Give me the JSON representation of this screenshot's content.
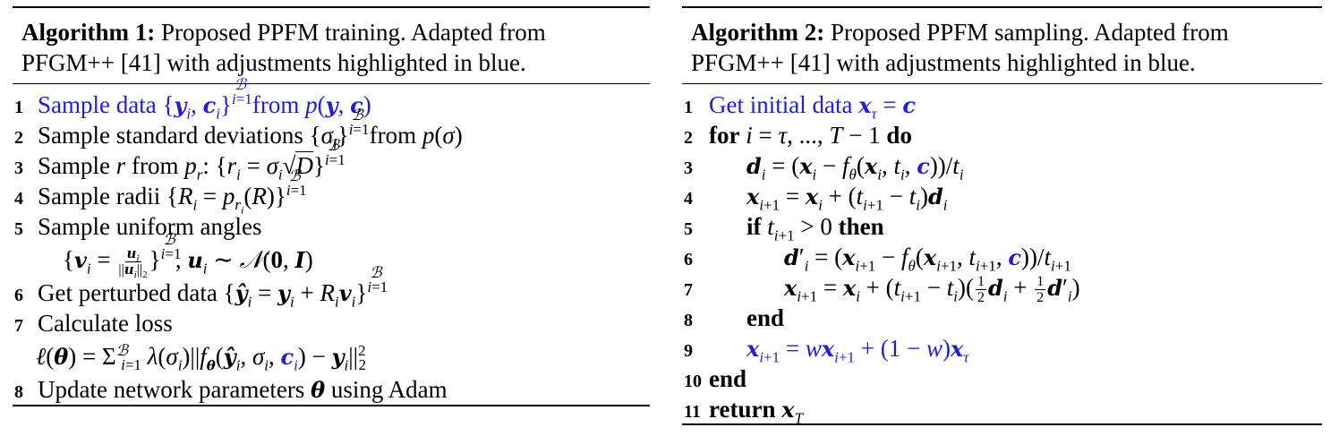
{
  "algorithm1": {
    "caption_label": "Algorithm 1:",
    "caption_text_1": " Proposed PPFM training. Adapted from",
    "caption_text_2": "PFGM++ [41] with adjustments highlighted in blue.",
    "lines": [
      {
        "num": "1",
        "text": "Sample data {y_i, c_i}_{i=1}^B from p(y, c)",
        "highlight": true
      },
      {
        "num": "2",
        "text": "Sample standard deviations {σ_i}_{i=1}^B from p(σ)"
      },
      {
        "num": "3",
        "text": "Sample r from p_r: {r_i = σ_i √D}_{i=1}^B"
      },
      {
        "num": "4",
        "text": "Sample radii {R_i = p_{r_i}(R)}_{i=1}^B"
      },
      {
        "num": "5",
        "text": "Sample uniform angles",
        "cont": "{v_i = u_i / ||u_i||_2}_{i=1}^B, u_i ∼ N(0, I)"
      },
      {
        "num": "6",
        "text": "Get perturbed data {ŷ_i = y_i + R_i v_i}_{i=1}^B"
      },
      {
        "num": "7",
        "text": "Calculate loss",
        "cont": "ℓ(θ) = Σ_{i=1}^B λ(σ_i) ||f_θ(ŷ_i, σ_i, c_i) − y_i||_2^2"
      },
      {
        "num": "8",
        "text": "Update network parameters θ using Adam"
      }
    ]
  },
  "algorithm2": {
    "caption_label": "Algorithm 2:",
    "caption_text_1": " Proposed PPFM sampling. Adapted from",
    "caption_text_2": "PFGM++ [41] with adjustments highlighted in blue.",
    "lines": [
      {
        "num": "1",
        "text": "Get initial data x_τ = c",
        "highlight": true
      },
      {
        "num": "2",
        "text": "for i = τ, ..., T − 1 do"
      },
      {
        "num": "3",
        "text": "d_i = (x_i − f_θ(x_i, t_i, c))/t_i"
      },
      {
        "num": "4",
        "text": "x_{i+1} = x_i + (t_{i+1} − t_i) d_i"
      },
      {
        "num": "5",
        "text": "if t_{i+1} > 0 then"
      },
      {
        "num": "6",
        "text": "d'_i = (x_{i+1} − f_θ(x_{i+1}, t_{i+1}, c))/t_{i+1}"
      },
      {
        "num": "7",
        "text": "x_{i+1} = x_i + (t_{i+1} − t_i)(½ d_i + ½ d'_i)"
      },
      {
        "num": "8",
        "text": "end"
      },
      {
        "num": "9",
        "text": "x_{i+1} = w x_{i+1} + (1 − w) x_τ",
        "highlight": true
      },
      {
        "num": "10",
        "text": "end"
      },
      {
        "num": "11",
        "text": "return x_T"
      }
    ]
  },
  "colors": {
    "highlight": "#1f1fd8",
    "text": "#000000"
  }
}
